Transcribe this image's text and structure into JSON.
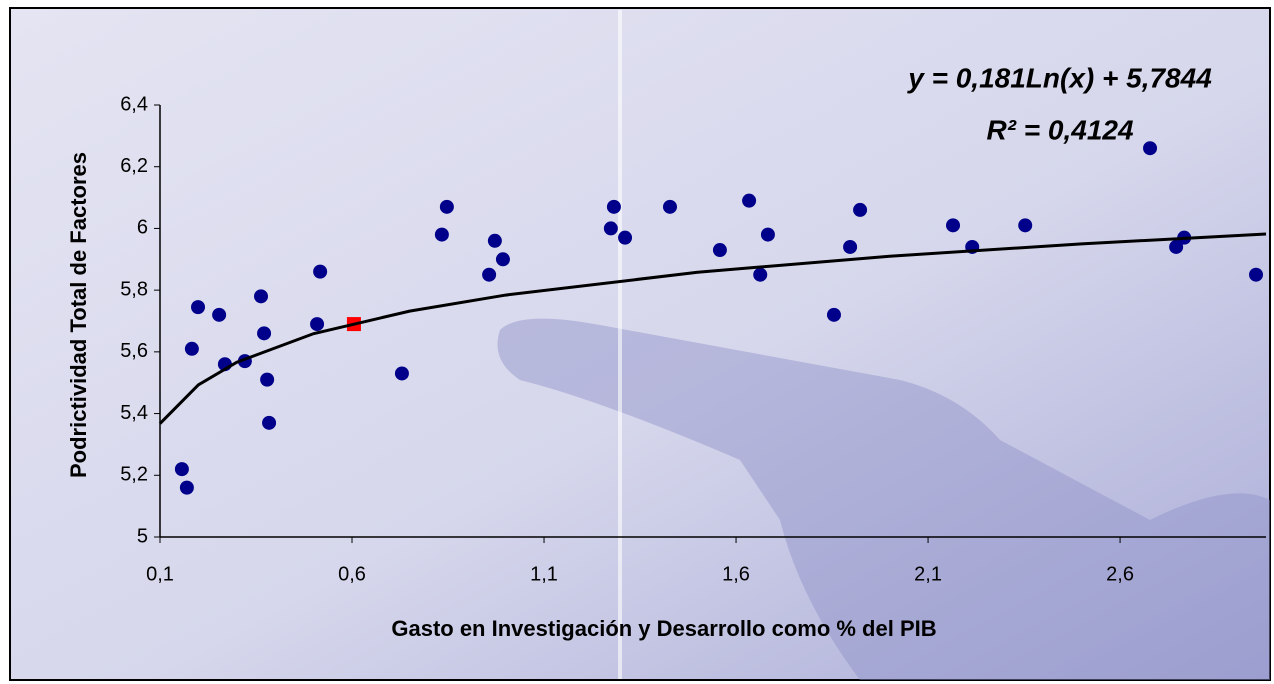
{
  "chart_data": {
    "type": "scatter",
    "x_label": "Gasto en Investigación y Desarrollo como % del PIB",
    "y_label": "Podrictividad Total de Factores",
    "annotations": [
      "y = 0,181Ln(x) + 5,7844",
      "R² = 0,4124"
    ],
    "xlim": [
      0.1,
      2.98
    ],
    "ylim": [
      5,
      6.4
    ],
    "xticks": [
      {
        "value": 0.1,
        "label": "0,1"
      },
      {
        "value": 0.6,
        "label": "0,6"
      },
      {
        "value": 1.1,
        "label": "1,1"
      },
      {
        "value": 1.6,
        "label": "1,6"
      },
      {
        "value": 2.1,
        "label": "2,1"
      },
      {
        "value": 2.6,
        "label": "2,6"
      }
    ],
    "yticks": [
      5,
      {
        "value": 5.2,
        "label": "5,2"
      },
      {
        "value": 5.4,
        "label": "5,4"
      },
      {
        "value": 5.6,
        "label": "5,6"
      },
      {
        "value": 5.8,
        "label": "5,8"
      },
      6,
      {
        "value": 6.2,
        "label": "6,2"
      },
      {
        "value": 6.4,
        "label": "6,4"
      }
    ],
    "series": [
      {
        "marker": "circle",
        "color": "#00008b",
        "x": [
          0.157,
          0.17,
          0.183,
          0.199,
          0.254,
          0.269,
          0.321,
          0.363,
          0.371,
          0.379,
          0.384,
          0.509,
          0.517,
          0.73,
          0.834,
          0.847,
          0.957,
          0.972,
          0.993,
          1.274,
          1.282,
          1.311,
          1.428,
          1.558,
          1.634,
          1.663,
          1.683,
          1.855,
          1.897,
          1.923,
          2.165,
          2.215,
          2.353,
          2.678,
          2.746,
          2.767,
          2.954
        ],
        "values": [
          5.22,
          5.16,
          5.61,
          5.745,
          5.72,
          5.56,
          5.57,
          5.78,
          5.66,
          5.51,
          5.37,
          5.69,
          5.86,
          5.53,
          5.98,
          6.07,
          5.85,
          5.96,
          5.9,
          6.0,
          6.07,
          5.97,
          6.07,
          5.93,
          6.09,
          5.85,
          5.98,
          5.72,
          5.94,
          6.06,
          6.01,
          5.94,
          6.01,
          6.26,
          5.94,
          5.97,
          5.85
        ]
      },
      {
        "marker": "square",
        "color": "#ff0000",
        "x": [
          0.605
        ],
        "values": [
          5.69
        ]
      },
      {
        "marker": "line",
        "color": "#000000",
        "x": [
          0.1,
          0.2,
          0.3,
          0.5,
          0.75,
          1,
          1.5,
          2,
          2.5,
          2.98
        ],
        "values": [
          5.3676,
          5.493,
          5.5665,
          5.659,
          5.732,
          5.784,
          5.858,
          5.91,
          5.95,
          5.982
        ]
      }
    ]
  }
}
